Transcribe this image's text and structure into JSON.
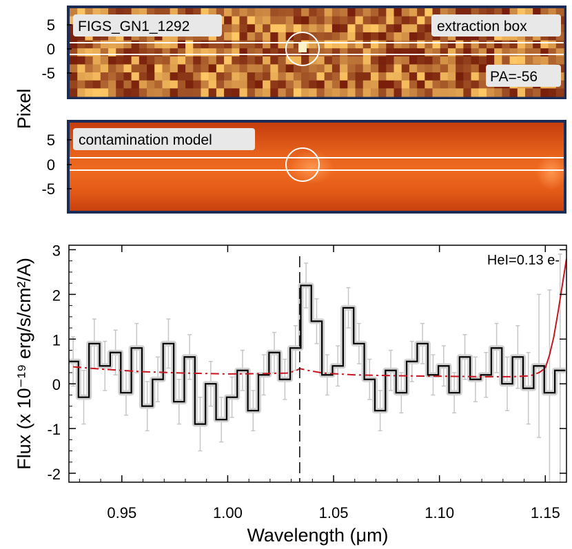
{
  "figure": {
    "panels": [
      {
        "id": "extraction",
        "labels": {
          "top_left": "FIGS_GN1_1292",
          "top_right": "extraction box",
          "bottom_right": "PA=-56"
        },
        "yticks": [
          "5",
          "0",
          "-5"
        ]
      },
      {
        "id": "contamination",
        "labels": {
          "top_left": "contamination model"
        },
        "yticks": [
          "5",
          "0",
          "-5"
        ]
      }
    ],
    "shared_ylabel": "Pixel"
  },
  "chart_data": {
    "type": "line",
    "xlabel": "Wavelength (μm)",
    "ylabel": "Flux (x 10⁻¹⁹ erg/s/cm²/A)",
    "annotation": "HeI=0.13 e-",
    "xlim": [
      0.925,
      1.16
    ],
    "ylim": [
      -2.2,
      3.1
    ],
    "xticks": [
      "0.95",
      "1.00",
      "1.05",
      "1.10",
      "1.15"
    ],
    "yticks": [
      "3",
      "2",
      "1",
      "0",
      "-1",
      "-2"
    ],
    "line_marker_x": 1.034,
    "series": [
      {
        "style": "step",
        "color": "#000000",
        "x": [
          0.927,
          0.932,
          0.937,
          0.942,
          0.947,
          0.952,
          0.957,
          0.962,
          0.967,
          0.972,
          0.977,
          0.982,
          0.987,
          0.992,
          0.997,
          1.002,
          1.007,
          1.012,
          1.017,
          1.022,
          1.027,
          1.032,
          1.037,
          1.042,
          1.047,
          1.052,
          1.057,
          1.062,
          1.067,
          1.072,
          1.077,
          1.082,
          1.087,
          1.092,
          1.097,
          1.102,
          1.107,
          1.112,
          1.117,
          1.122,
          1.127,
          1.132,
          1.137,
          1.142,
          1.147,
          1.152,
          1.157
        ],
        "y": [
          0.5,
          -0.3,
          0.9,
          0.4,
          0.7,
          -0.2,
          0.8,
          -0.5,
          0.1,
          0.9,
          -0.4,
          0.6,
          -0.9,
          0.0,
          -0.8,
          -0.3,
          0.3,
          -0.6,
          0.2,
          0.7,
          0.1,
          0.8,
          2.2,
          1.4,
          0.2,
          0.4,
          1.7,
          0.9,
          0.1,
          -0.6,
          0.3,
          -0.2,
          0.5,
          0.9,
          0.2,
          0.4,
          -0.2,
          0.6,
          0.1,
          0.2,
          0.8,
          0.0,
          0.6,
          -0.1,
          0.4,
          -0.2,
          0.3
        ],
        "yerr": [
          0.55,
          0.6,
          0.55,
          0.55,
          0.5,
          0.5,
          0.55,
          0.55,
          0.5,
          0.55,
          0.5,
          0.5,
          0.6,
          0.5,
          0.5,
          0.45,
          0.45,
          0.45,
          0.45,
          0.45,
          0.45,
          0.5,
          0.5,
          0.5,
          0.45,
          0.45,
          0.45,
          0.45,
          0.45,
          0.45,
          0.45,
          0.45,
          0.45,
          0.45,
          0.45,
          0.45,
          0.45,
          0.5,
          0.5,
          0.5,
          0.55,
          0.6,
          0.7,
          0.8,
          1.6,
          2.3,
          2.6
        ]
      },
      {
        "style": "dashed",
        "color": "#c8141e",
        "x": [
          0.927,
          0.94,
          0.96,
          0.98,
          1.0,
          1.02,
          1.028,
          1.032,
          1.034,
          1.038,
          1.045,
          1.06,
          1.08,
          1.1,
          1.12,
          1.135,
          1.143,
          1.147,
          1.15
        ],
        "y": [
          0.38,
          0.33,
          0.27,
          0.24,
          0.22,
          0.23,
          0.24,
          0.29,
          0.34,
          0.3,
          0.24,
          0.2,
          0.18,
          0.17,
          0.16,
          0.16,
          0.18,
          0.25,
          0.35
        ]
      },
      {
        "style": "solid",
        "color": "#c8141e",
        "x": [
          1.15,
          1.152,
          1.154,
          1.156,
          1.158,
          1.16
        ],
        "y": [
          0.35,
          0.65,
          1.05,
          1.6,
          2.2,
          2.8
        ]
      }
    ]
  }
}
